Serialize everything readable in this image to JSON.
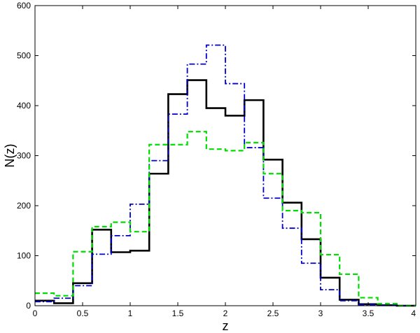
{
  "chart_data": {
    "type": "line",
    "step": true,
    "xlabel": "z",
    "ylabel": "N(z)",
    "xlim": [
      0,
      4
    ],
    "ylim": [
      0,
      600
    ],
    "xticks": [
      0,
      0.5,
      1,
      1.5,
      2,
      2.5,
      3,
      3.5,
      4
    ],
    "xtick_labels": [
      "0",
      "0.5",
      "1",
      "1.5",
      "2",
      "2.5",
      "3",
      "3.5",
      "4"
    ],
    "yticks": [
      0,
      100,
      200,
      300,
      400,
      500,
      600
    ],
    "ytick_labels": [
      "0",
      "100",
      "200",
      "300",
      "400",
      "500",
      "600"
    ],
    "grid": false,
    "bin_edges": [
      0,
      0.2,
      0.4,
      0.6,
      0.8,
      1.0,
      1.2,
      1.4,
      1.6,
      1.8,
      2.0,
      2.2,
      2.4,
      2.6,
      2.8,
      3.0,
      3.2,
      3.4,
      3.6,
      3.8,
      4.0
    ],
    "series": [
      {
        "color": "#000000",
        "style": "solid",
        "values": [
          10,
          5,
          45,
          152,
          107,
          110,
          264,
          423,
          451,
          395,
          380,
          411,
          292,
          206,
          133,
          56,
          12,
          3,
          1,
          0
        ]
      },
      {
        "color": "#0000cc",
        "style": "dashdot",
        "values": [
          8,
          15,
          40,
          103,
          140,
          203,
          290,
          383,
          483,
          521,
          444,
          316,
          215,
          155,
          85,
          32,
          10,
          2,
          1,
          0
        ]
      },
      {
        "color": "#00dd00",
        "style": "dashed",
        "values": [
          25,
          20,
          108,
          158,
          167,
          148,
          322,
          322,
          348,
          313,
          310,
          326,
          264,
          190,
          186,
          102,
          63,
          16,
          4,
          0
        ]
      }
    ]
  }
}
